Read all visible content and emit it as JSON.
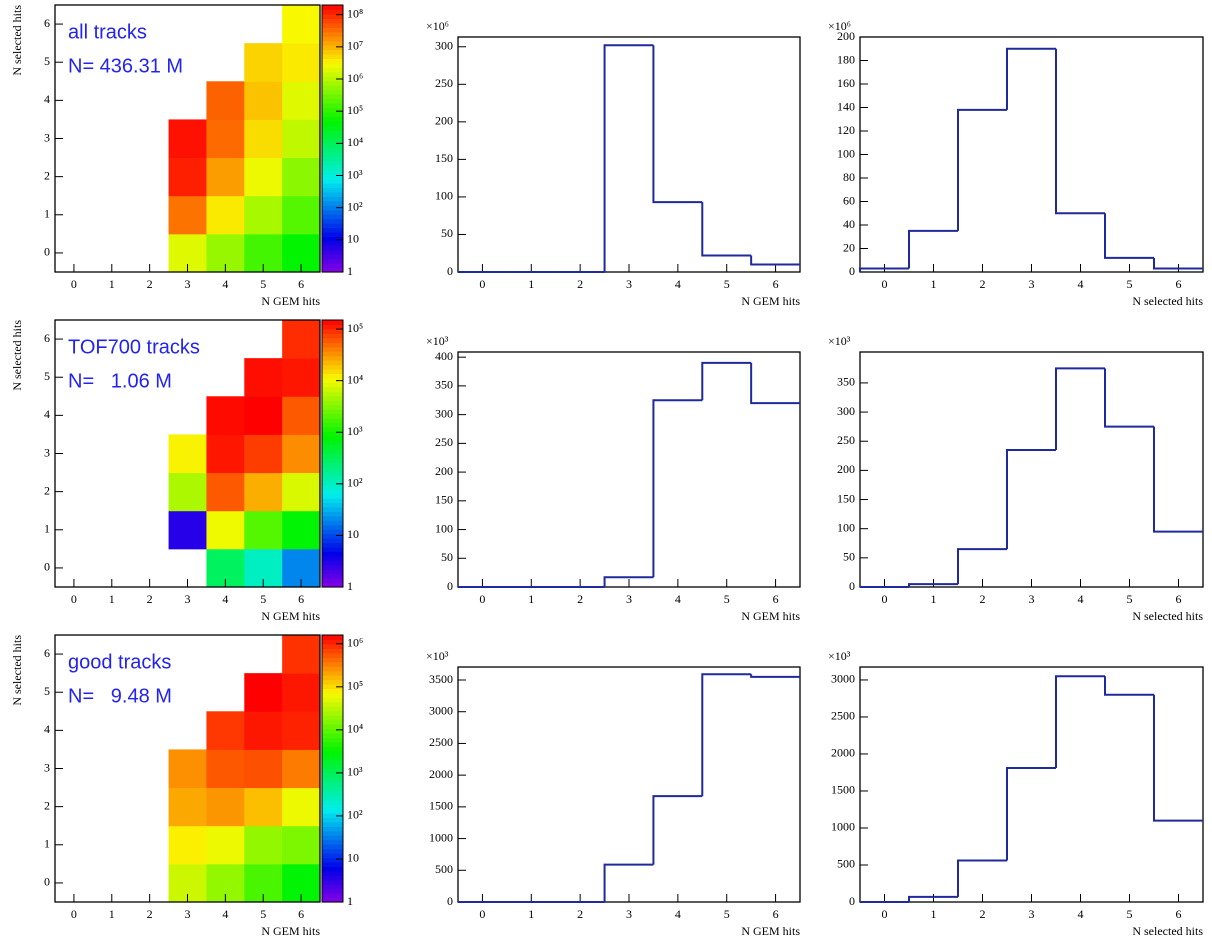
{
  "chart_data": [
    {
      "type": "heatmap",
      "annotations": [
        "all tracks",
        "N= 436.31 M"
      ],
      "x_label": "N GEM hits",
      "y_label": "N selected hits",
      "x": [
        0,
        1,
        2,
        3,
        4,
        5,
        6
      ],
      "y": [
        0,
        1,
        2,
        3,
        4,
        5,
        6
      ],
      "z": [
        [
          null,
          null,
          null,
          2000000,
          600000,
          150000,
          50000
        ],
        [
          null,
          null,
          null,
          30000000,
          4000000,
          800000,
          200000
        ],
        [
          null,
          null,
          null,
          120000000,
          15000000,
          2500000,
          500000
        ],
        [
          null,
          null,
          null,
          150000000,
          35000000,
          5000000,
          1200000
        ],
        [
          null,
          null,
          null,
          null,
          40000000,
          8000000,
          2000000
        ],
        [
          null,
          null,
          null,
          null,
          null,
          6000000,
          4000000
        ],
        [
          null,
          null,
          null,
          null,
          null,
          null,
          3000000
        ]
      ],
      "xlim": [
        -0.5,
        6.5
      ],
      "ylim": [
        -0.5,
        6.5
      ],
      "xticks": [
        0,
        1,
        2,
        3,
        4,
        5,
        6
      ],
      "yticks": [
        0,
        1,
        2,
        3,
        4,
        5,
        6
      ],
      "zlim": [
        1,
        200000000
      ],
      "zlog": true,
      "colormap": "rainbow",
      "zticks": [
        1,
        10,
        {
          "value": 100,
          "label": "10²"
        },
        {
          "value": 1000,
          "label": "10³"
        },
        {
          "value": 10000,
          "label": "10⁴"
        },
        {
          "value": 100000,
          "label": "10⁵"
        },
        {
          "value": 1000000,
          "label": "10⁶"
        },
        {
          "value": 10000000,
          "label": "10⁷"
        },
        {
          "value": 100000000,
          "label": "10⁸"
        }
      ]
    },
    {
      "type": "histogram",
      "x_label": "N GEM hits",
      "y_multiplier": "×10⁶",
      "color": "#1f2a9c",
      "bins": [
        -0.5,
        0.5,
        1.5,
        2.5,
        3.5,
        4.5,
        5.5,
        6.5
      ],
      "values": [
        0,
        0,
        0,
        302,
        93,
        22,
        10
      ],
      "xlim": [
        -0.5,
        6.5
      ],
      "xticks": [
        0,
        1,
        2,
        3,
        4,
        5,
        6
      ],
      "ylim": [
        0,
        313
      ],
      "yticks": [
        0,
        50,
        100,
        150,
        200,
        250,
        300
      ]
    },
    {
      "type": "histogram",
      "x_label": "N selected hits",
      "y_multiplier": "×10⁶",
      "color": "#1f2a9c",
      "bins": [
        -0.5,
        0.5,
        1.5,
        2.5,
        3.5,
        4.5,
        5.5,
        6.5
      ],
      "values": [
        3,
        35,
        138,
        190,
        50,
        12,
        3
      ],
      "xlim": [
        -0.5,
        6.5
      ],
      "xticks": [
        0,
        1,
        2,
        3,
        4,
        5,
        6
      ],
      "ylim": [
        0,
        200
      ],
      "yticks": [
        0,
        20,
        40,
        60,
        80,
        100,
        120,
        140,
        160,
        180,
        200
      ]
    },
    {
      "type": "heatmap",
      "annotations": [
        "TOF700 tracks",
        "N=   1.06 M"
      ],
      "x_label": "N GEM hits",
      "y_label": "N selected hits",
      "x": [
        0,
        1,
        2,
        3,
        4,
        5,
        6
      ],
      "y": [
        0,
        1,
        2,
        3,
        4,
        5,
        6
      ],
      "z": [
        [
          null,
          null,
          null,
          null,
          300,
          100,
          20
        ],
        [
          null,
          null,
          null,
          3,
          10000,
          2000,
          800
        ],
        [
          null,
          null,
          null,
          5000,
          60000,
          25000,
          8000
        ],
        [
          null,
          null,
          null,
          12000,
          120000,
          80000,
          35000
        ],
        [
          null,
          null,
          null,
          null,
          135000,
          150000,
          60000
        ],
        [
          null,
          null,
          null,
          null,
          null,
          130000,
          120000
        ],
        [
          null,
          null,
          null,
          null,
          null,
          null,
          95000
        ]
      ],
      "xlim": [
        -0.5,
        6.5
      ],
      "ylim": [
        -0.5,
        6.5
      ],
      "xticks": [
        0,
        1,
        2,
        3,
        4,
        5,
        6
      ],
      "yticks": [
        0,
        1,
        2,
        3,
        4,
        5,
        6
      ],
      "zlim": [
        1,
        150000
      ],
      "zlog": true,
      "colormap": "rainbow",
      "zticks": [
        1,
        10,
        {
          "value": 100,
          "label": "10²"
        },
        {
          "value": 1000,
          "label": "10³"
        },
        {
          "value": 10000,
          "label": "10⁴"
        },
        {
          "value": 100000,
          "label": "10⁵"
        }
      ]
    },
    {
      "type": "histogram",
      "x_label": "N GEM hits",
      "y_multiplier": "×10³",
      "color": "#1f2a9c",
      "bins": [
        -0.5,
        0.5,
        1.5,
        2.5,
        3.5,
        4.5,
        5.5,
        6.5
      ],
      "values": [
        0,
        0,
        0,
        17,
        325,
        390,
        320
      ],
      "xlim": [
        -0.5,
        6.5
      ],
      "xticks": [
        0,
        1,
        2,
        3,
        4,
        5,
        6
      ],
      "ylim": [
        0,
        409
      ],
      "yticks": [
        0,
        50,
        100,
        150,
        200,
        250,
        300,
        350,
        400
      ]
    },
    {
      "type": "histogram",
      "x_label": "N selected hits",
      "y_multiplier": "×10³",
      "color": "#1f2a9c",
      "bins": [
        -0.5,
        0.5,
        1.5,
        2.5,
        3.5,
        4.5,
        5.5,
        6.5
      ],
      "values": [
        0,
        5,
        65,
        235,
        375,
        275,
        95
      ],
      "xlim": [
        -0.5,
        6.5
      ],
      "xticks": [
        0,
        1,
        2,
        3,
        4,
        5,
        6
      ],
      "ylim": [
        0,
        403
      ],
      "yticks": [
        0,
        50,
        100,
        150,
        200,
        250,
        300,
        350
      ]
    },
    {
      "type": "heatmap",
      "annotations": [
        "good tracks",
        "N=   9.48 M"
      ],
      "x_label": "N GEM hits",
      "y_label": "N selected hits",
      "x": [
        0,
        1,
        2,
        3,
        4,
        5,
        6
      ],
      "y": [
        0,
        1,
        2,
        3,
        4,
        5,
        6
      ],
      "z": [
        [
          null,
          null,
          null,
          40000,
          20000,
          8000,
          3000
        ],
        [
          null,
          null,
          null,
          80000,
          60000,
          20000,
          15000
        ],
        [
          null,
          null,
          null,
          200000,
          250000,
          150000,
          60000
        ],
        [
          null,
          null,
          null,
          270000,
          540000,
          600000,
          350000
        ],
        [
          null,
          null,
          null,
          null,
          800000,
          1200000,
          1050000
        ],
        [
          null,
          null,
          null,
          null,
          null,
          1600000,
          1200000
        ],
        [
          null,
          null,
          null,
          null,
          null,
          null,
          870000
        ]
      ],
      "xlim": [
        -0.5,
        6.5
      ],
      "ylim": [
        -0.5,
        6.5
      ],
      "xticks": [
        0,
        1,
        2,
        3,
        4,
        5,
        6
      ],
      "yticks": [
        0,
        1,
        2,
        3,
        4,
        5,
        6
      ],
      "zlim": [
        1,
        1600000
      ],
      "zlog": true,
      "colormap": "rainbow",
      "zticks": [
        1,
        10,
        {
          "value": 100,
          "label": "10²"
        },
        {
          "value": 1000,
          "label": "10³"
        },
        {
          "value": 10000,
          "label": "10⁴"
        },
        {
          "value": 100000,
          "label": "10⁵"
        },
        {
          "value": 1000000,
          "label": "10⁶"
        }
      ]
    },
    {
      "type": "histogram",
      "x_label": "N GEM hits",
      "y_multiplier": "×10³",
      "color": "#1f2a9c",
      "bins": [
        -0.5,
        0.5,
        1.5,
        2.5,
        3.5,
        4.5,
        5.5,
        6.5
      ],
      "values": [
        0,
        0,
        0,
        590,
        1670,
        3590,
        3550
      ],
      "xlim": [
        -0.5,
        6.5
      ],
      "xticks": [
        0,
        1,
        2,
        3,
        4,
        5,
        6
      ],
      "ylim": [
        0,
        3705
      ],
      "yticks": [
        0,
        500,
        1000,
        1500,
        2000,
        2500,
        3000,
        3500
      ]
    },
    {
      "type": "histogram",
      "x_label": "N selected hits",
      "y_multiplier": "×10³",
      "color": "#1f2a9c",
      "bins": [
        -0.5,
        0.5,
        1.5,
        2.5,
        3.5,
        4.5,
        5.5,
        6.5
      ],
      "values": [
        0,
        70,
        560,
        1810,
        3050,
        2800,
        1100
      ],
      "xlim": [
        -0.5,
        6.5
      ],
      "xticks": [
        0,
        1,
        2,
        3,
        4,
        5,
        6
      ],
      "ylim": [
        0,
        3175
      ],
      "yticks": [
        0,
        500,
        1000,
        1500,
        2000,
        2500,
        3000
      ]
    }
  ]
}
